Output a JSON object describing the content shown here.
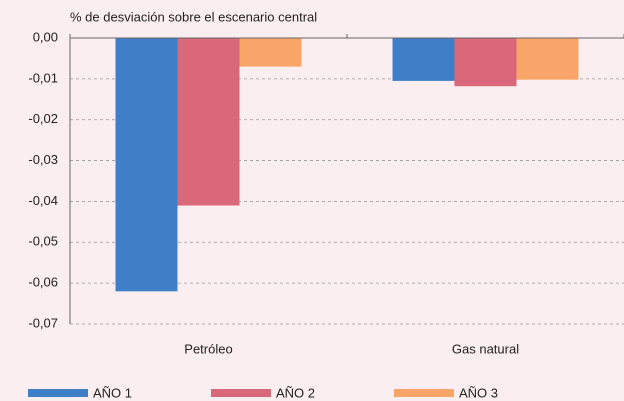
{
  "chart_data": {
    "type": "bar",
    "ylabel": "% de desviación sobre el escenario central",
    "categories": [
      "Petróleo",
      "Gas natural"
    ],
    "series": [
      {
        "name": "AÑO 1",
        "color": "#3f7fc7",
        "values": [
          -0.062,
          -0.0105
        ]
      },
      {
        "name": "AÑO 2",
        "color": "#d9687a",
        "values": [
          -0.041,
          -0.0118
        ]
      },
      {
        "name": "AÑO 3",
        "color": "#f9a56a",
        "values": [
          -0.007,
          -0.0102
        ]
      }
    ],
    "ylim": [
      -0.07,
      0
    ],
    "yticks": [
      {
        "value": 0,
        "label": "0,00"
      },
      {
        "value": -0.01,
        "label": "-0,01"
      },
      {
        "value": -0.02,
        "label": "-0,02"
      },
      {
        "value": -0.03,
        "label": "-0,03"
      },
      {
        "value": -0.04,
        "label": "-0,04"
      },
      {
        "value": -0.05,
        "label": "-0,05"
      },
      {
        "value": -0.06,
        "label": "-0,06"
      },
      {
        "value": -0.07,
        "label": "-0,07"
      }
    ],
    "grid": true,
    "legend": "bottom"
  }
}
